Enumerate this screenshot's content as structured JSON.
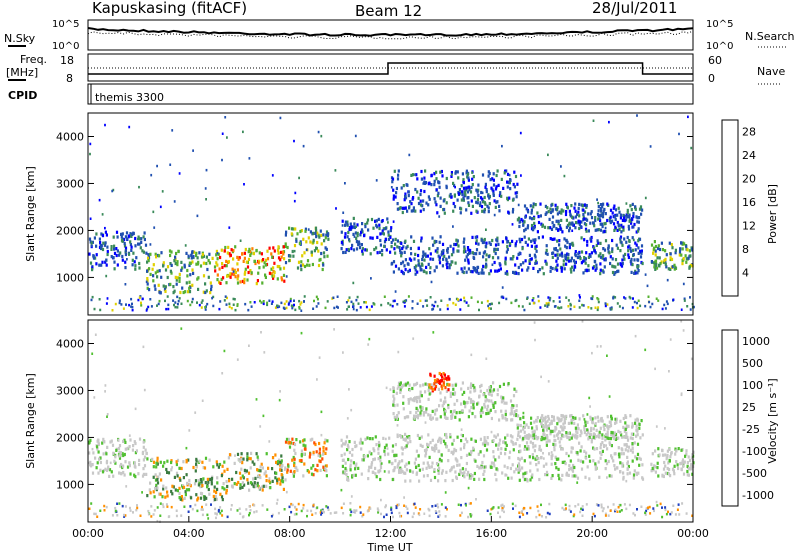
{
  "header": {
    "station": "Kapuskasing (fitACF)",
    "beam": "Beam 12",
    "date": "28/Jul/2011"
  },
  "top_panel": {
    "left_label": "N.Sky",
    "right_label": "N.Search",
    "tick_top": "10^5",
    "tick_bottom": "10^0"
  },
  "freq_panel": {
    "left_label_1": "Freq.",
    "left_label_2": "[MHz]",
    "right_label": "Nave",
    "left_ticks": [
      "18",
      "8"
    ],
    "right_ticks": [
      "60",
      "0"
    ]
  },
  "cpid": {
    "label": "CPID",
    "value": "themis 3300"
  },
  "chart_data": [
    {
      "type": "heatmap",
      "name": "power",
      "ylabel": "Slant Range [km]",
      "ylim": [
        200,
        4500
      ],
      "xlim": [
        0,
        24
      ],
      "yticks": [
        "1000",
        "2000",
        "3000",
        "4000"
      ],
      "colorbar": {
        "label": "Power [dB]",
        "ticks": [
          "4",
          "8",
          "12",
          "16",
          "20",
          "24",
          "28"
        ],
        "range": [
          0,
          30
        ],
        "colors": [
          "#0000ff",
          "#2050b0",
          "#3a8a5a",
          "#55b030",
          "#e0d000",
          "#ff8000",
          "#ff0000"
        ]
      },
      "regions": [
        {
          "t": [
            0.0,
            2.3
          ],
          "r": [
            1200,
            2000
          ],
          "level": "low"
        },
        {
          "t": [
            2.3,
            5.0
          ],
          "r": [
            700,
            1600
          ],
          "level": "mid"
        },
        {
          "t": [
            5.0,
            7.8
          ],
          "r": [
            900,
            1700
          ],
          "level": "high"
        },
        {
          "t": [
            7.8,
            9.5
          ],
          "r": [
            1200,
            2100
          ],
          "level": "mid"
        },
        {
          "t": [
            10.0,
            12.0
          ],
          "r": [
            1500,
            2300
          ],
          "level": "low"
        },
        {
          "t": [
            12.0,
            22.0
          ],
          "r": [
            1100,
            1900
          ],
          "level": "low"
        },
        {
          "t": [
            12.0,
            17.0
          ],
          "r": [
            2400,
            3300
          ],
          "level": "low"
        },
        {
          "t": [
            17.0,
            22.0
          ],
          "r": [
            2000,
            2600
          ],
          "level": "low"
        },
        {
          "t": [
            22.3,
            24.0
          ],
          "r": [
            1200,
            1800
          ],
          "level": "mid"
        }
      ]
    },
    {
      "type": "heatmap",
      "name": "velocity",
      "ylabel": "Slant Range [km]",
      "xlabel": "Time UT",
      "ylim": [
        200,
        4500
      ],
      "xlim": [
        0,
        24
      ],
      "yticks": [
        "1000",
        "2000",
        "3000",
        "4000"
      ],
      "xticks": [
        "00:00",
        "04:00",
        "08:00",
        "12:00",
        "16:00",
        "20:00",
        "00:00"
      ],
      "colorbar": {
        "label": "Velocity [m s⁻¹]",
        "ticks": [
          "1000",
          "500",
          "100",
          "25",
          "-25",
          "-100",
          "-500",
          "-1000"
        ],
        "colors": [
          "#2040c0",
          "#3a7a40",
          "#50c030",
          "#c8c8c8",
          "#c8c8c8",
          "#ff9000",
          "#ff5000",
          "#ff0000"
        ]
      },
      "regions": [
        {
          "t": [
            0.0,
            2.3
          ],
          "r": [
            1200,
            2000
          ],
          "level": "gray"
        },
        {
          "t": [
            2.3,
            5.5
          ],
          "r": [
            700,
            1600
          ],
          "level": "green"
        },
        {
          "t": [
            5.5,
            7.8
          ],
          "r": [
            900,
            1700
          ],
          "level": "green"
        },
        {
          "t": [
            7.8,
            9.5
          ],
          "r": [
            1200,
            2000
          ],
          "level": "orange"
        },
        {
          "t": [
            10.0,
            22.0
          ],
          "r": [
            1100,
            2100
          ],
          "level": "gray"
        },
        {
          "t": [
            12.0,
            17.0
          ],
          "r": [
            2400,
            3200
          ],
          "level": "gray"
        },
        {
          "t": [
            13.5,
            14.3
          ],
          "r": [
            3000,
            3400
          ],
          "level": "red"
        },
        {
          "t": [
            17.0,
            22.0
          ],
          "r": [
            2000,
            2500
          ],
          "level": "gray"
        },
        {
          "t": [
            22.3,
            24.0
          ],
          "r": [
            1200,
            1800
          ],
          "level": "gray"
        }
      ]
    }
  ]
}
